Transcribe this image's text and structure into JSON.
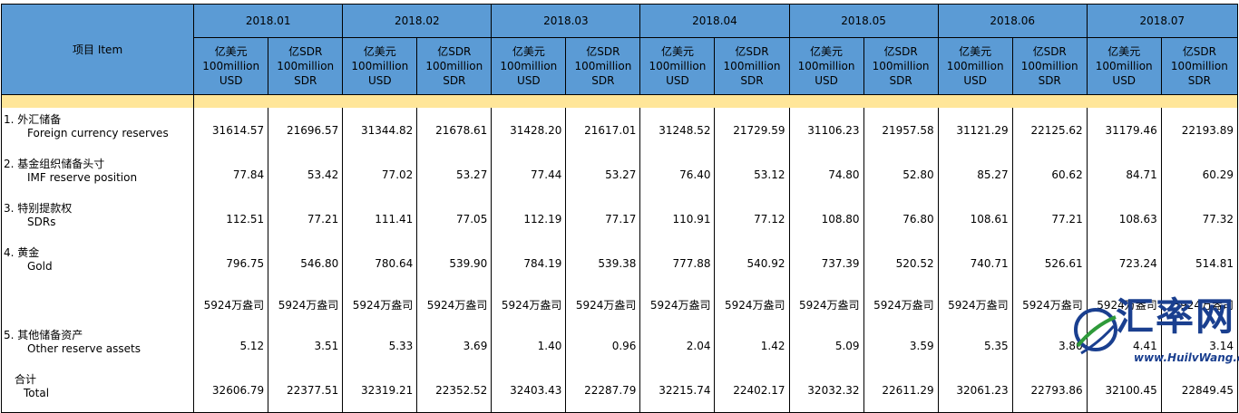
{
  "table": {
    "item_header": "项目  Item",
    "months": [
      "2018.01",
      "2018.02",
      "2018.03",
      "2018.04",
      "2018.05",
      "2018.06",
      "2018.07"
    ],
    "unit_usd": [
      "亿美元",
      "100million",
      "USD"
    ],
    "unit_sdr": [
      "亿SDR",
      "100million",
      "SDR"
    ],
    "rows": [
      {
        "zh": "1.  外汇储备",
        "en": "Foreign currency reserves",
        "values": [
          "31614.57",
          "21696.57",
          "31344.82",
          "21678.61",
          "31428.20",
          "21617.01",
          "31248.52",
          "21729.59",
          "31106.23",
          "21957.58",
          "31121.29",
          "22125.62",
          "31179.46",
          "22193.89"
        ]
      },
      {
        "zh": "2.  基金组织储备头寸",
        "en": "IMF reserve position",
        "values": [
          "77.84",
          "53.42",
          "77.02",
          "53.27",
          "77.44",
          "53.27",
          "76.40",
          "53.12",
          "74.80",
          "52.80",
          "85.27",
          "60.62",
          "84.71",
          "60.29"
        ]
      },
      {
        "zh": "3.  特别提款权",
        "en": "SDRs",
        "values": [
          "112.51",
          "77.21",
          "111.41",
          "77.05",
          "112.19",
          "77.17",
          "110.91",
          "77.12",
          "108.80",
          "76.80",
          "108.61",
          "77.21",
          "108.63",
          "77.32"
        ]
      },
      {
        "zh": "4.  黄金",
        "en": "Gold",
        "values": [
          "796.75",
          "546.80",
          "780.64",
          "539.90",
          "784.19",
          "539.38",
          "777.88",
          "540.92",
          "737.39",
          "520.52",
          "740.71",
          "526.61",
          "723.24",
          "514.81"
        ]
      },
      {
        "zh": "",
        "en": "",
        "values": [
          "5924万盎司",
          "5924万盎司",
          "5924万盎司",
          "5924万盎司",
          "5924万盎司",
          "5924万盎司",
          "5924万盎司",
          "5924万盎司",
          "5924万盎司",
          "5924万盎司",
          "5924万盎司",
          "5924万盎司",
          "5924万盎司",
          "5924万盎司"
        ]
      },
      {
        "zh": "5.  其他储备资产",
        "en": "Other reserve assets",
        "values": [
          "5.12",
          "3.51",
          "5.33",
          "3.69",
          "1.40",
          "0.96",
          "2.04",
          "1.42",
          "5.09",
          "3.59",
          "5.35",
          "3.80",
          "4.41",
          "3.14"
        ]
      },
      {
        "zh": "合计",
        "en": "Total",
        "values": [
          "32606.79",
          "22377.51",
          "32319.21",
          "22352.52",
          "32403.43",
          "22287.79",
          "32215.74",
          "22402.17",
          "32032.32",
          "22611.29",
          "32061.23",
          "22793.86",
          "32100.45",
          "22849.45"
        ]
      }
    ]
  },
  "watermark": {
    "title": "汇率网",
    "url": "www.HuilvWang.com",
    "logo_icon": "swirl-logo-icon"
  },
  "colors": {
    "header_bg": "#5b9bd5",
    "band_bg": "#ffe699",
    "watermark": "#1a3f8f"
  }
}
